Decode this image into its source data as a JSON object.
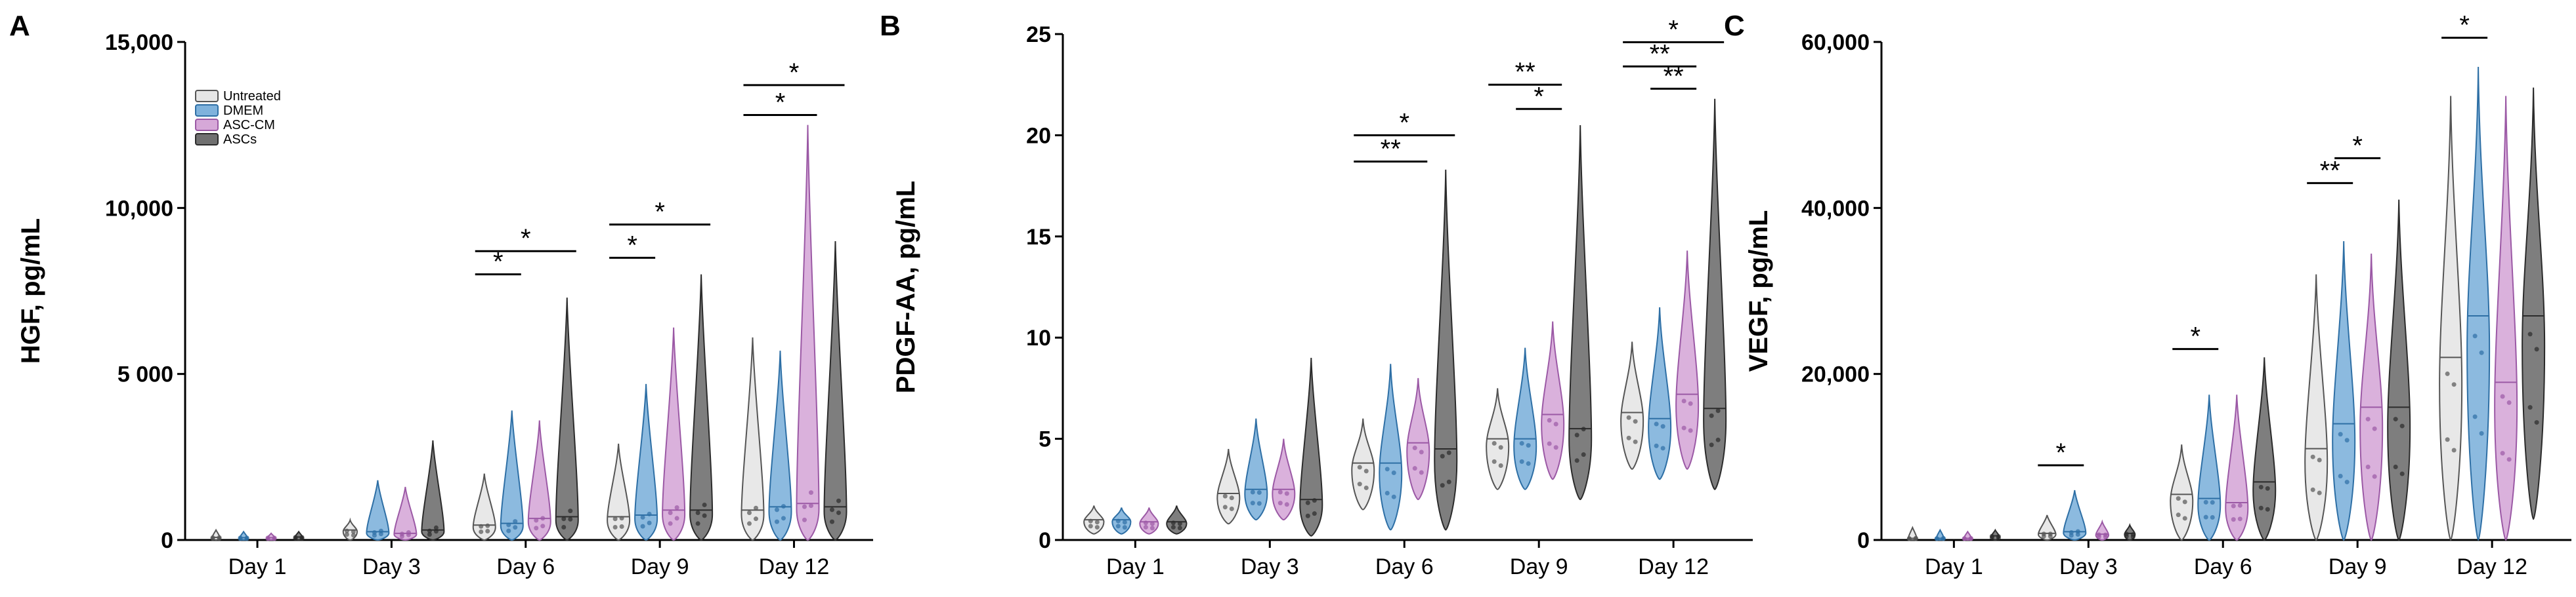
{
  "chart_data": [
    {
      "type": "violin",
      "panel_label": "A",
      "ylabel": "HGF, pg/mL",
      "ylim": [
        0,
        15000
      ],
      "yticks": [
        0,
        5000,
        10000,
        15000
      ],
      "ytick_labels": [
        "0",
        "5 000",
        "10,000",
        "15,000"
      ],
      "categories": [
        "Day 1",
        "Day 3",
        "Day 6",
        "Day 9",
        "Day 12"
      ],
      "legend": {
        "placement": "top-left",
        "entries": [
          "Untreated",
          "DMEM",
          "ASC-CM",
          "ASCs"
        ]
      },
      "series": [
        {
          "name": "Untreated",
          "color": "#e6e6e6",
          "edge": "#555555",
          "min": [
            0,
            0,
            0,
            0,
            0
          ],
          "median": [
            80,
            300,
            450,
            700,
            900
          ],
          "max": [
            300,
            600,
            2000,
            2900,
            6100
          ]
        },
        {
          "name": "DMEM",
          "color": "#7fb2dc",
          "edge": "#2e6fa5",
          "min": [
            0,
            0,
            0,
            0,
            0
          ],
          "median": [
            70,
            250,
            500,
            750,
            1000
          ],
          "max": [
            250,
            1800,
            3900,
            4700,
            5700
          ]
        },
        {
          "name": "ASC-CM",
          "color": "#d6a8d8",
          "edge": "#9b59a5",
          "min": [
            0,
            0,
            0,
            0,
            0
          ],
          "median": [
            70,
            200,
            650,
            900,
            1100
          ],
          "max": [
            200,
            1600,
            3600,
            6400,
            12500
          ]
        },
        {
          "name": "ASCs",
          "color": "#707070",
          "edge": "#2b2b2b",
          "min": [
            0,
            0,
            0,
            0,
            0
          ],
          "median": [
            90,
            300,
            700,
            900,
            1000
          ],
          "max": [
            250,
            3000,
            7300,
            8000,
            9000
          ]
        }
      ],
      "significance": [
        {
          "category": "Day 6",
          "from": "Untreated",
          "to": "DMEM",
          "label": "*",
          "y": 8000
        },
        {
          "category": "Day 6",
          "from": "Untreated",
          "to": "ASCs",
          "label": "*",
          "y": 8700
        },
        {
          "category": "Day 9",
          "from": "Untreated",
          "to": "DMEM",
          "label": "*",
          "y": 8500
        },
        {
          "category": "Day 9",
          "from": "Untreated",
          "to": "ASCs",
          "label": "*",
          "y": 9500
        },
        {
          "category": "Day 12",
          "from": "Untreated",
          "to": "ASC-CM",
          "label": "*",
          "y": 12800
        },
        {
          "category": "Day 12",
          "from": "Untreated",
          "to": "ASCs",
          "label": "*",
          "y": 13700
        }
      ]
    },
    {
      "type": "violin",
      "panel_label": "B",
      "ylabel": "PDGF-AA, pg/mL",
      "ylim": [
        0,
        25
      ],
      "yticks": [
        0,
        5,
        10,
        15,
        20,
        25
      ],
      "ytick_labels": [
        "0",
        "5",
        "10",
        "15",
        "20",
        "25"
      ],
      "categories": [
        "Day 1",
        "Day 3",
        "Day 6",
        "Day 9",
        "Day 12"
      ],
      "series": [
        {
          "name": "Untreated",
          "color": "#e6e6e6",
          "edge": "#555555",
          "min": [
            0.3,
            0.8,
            1.5,
            2.5,
            3.5
          ],
          "median": [
            1.0,
            2.3,
            3.8,
            5.0,
            6.3
          ],
          "max": [
            1.7,
            4.5,
            6.0,
            7.5,
            9.8
          ]
        },
        {
          "name": "DMEM",
          "color": "#7fb2dc",
          "edge": "#2e6fa5",
          "min": [
            0.3,
            1.0,
            0.5,
            2.5,
            3.0
          ],
          "median": [
            1.0,
            2.5,
            3.8,
            5.0,
            6.0
          ],
          "max": [
            1.6,
            6.0,
            8.7,
            9.5,
            11.5
          ]
        },
        {
          "name": "ASC-CM",
          "color": "#d6a8d8",
          "edge": "#9b59a5",
          "min": [
            0.3,
            1.0,
            2.0,
            3.0,
            3.5
          ],
          "median": [
            0.9,
            2.5,
            4.8,
            6.2,
            7.2
          ],
          "max": [
            1.6,
            5.0,
            8.0,
            10.8,
            14.3
          ]
        },
        {
          "name": "ASCs",
          "color": "#707070",
          "edge": "#2b2b2b",
          "min": [
            0.3,
            0.2,
            0.5,
            2.0,
            2.5
          ],
          "median": [
            0.9,
            2.0,
            4.5,
            5.5,
            6.5
          ],
          "max": [
            1.7,
            9.0,
            18.3,
            20.5,
            21.8
          ]
        }
      ],
      "significance": [
        {
          "category": "Day 6",
          "from": "Untreated",
          "to": "ASC-CM",
          "label": "**",
          "y": 18.7
        },
        {
          "category": "Day 6",
          "from": "Untreated",
          "to": "ASCs",
          "label": "*",
          "y": 20.0
        },
        {
          "category": "Day 9",
          "from": "DMEM",
          "to": "ASC-CM",
          "label": "*",
          "y": 21.3
        },
        {
          "category": "Day 9",
          "from": "Untreated",
          "to": "ASC-CM",
          "label": "**",
          "y": 22.5
        },
        {
          "category": "Day 12",
          "from": "DMEM",
          "to": "ASC-CM",
          "label": "**",
          "y": 22.3
        },
        {
          "category": "Day 12",
          "from": "Untreated",
          "to": "ASC-CM",
          "label": "**",
          "y": 23.4
        },
        {
          "category": "Day 12",
          "from": "Untreated",
          "to": "ASCs",
          "label": "*",
          "y": 24.6
        }
      ]
    },
    {
      "type": "violin",
      "panel_label": "C",
      "ylabel": "VEGF, pg/mL",
      "ylim": [
        0,
        60000
      ],
      "yticks": [
        0,
        20000,
        40000,
        60000
      ],
      "ytick_labels": [
        "0",
        "20,000",
        "40,000",
        "60,000"
      ],
      "categories": [
        "Day 1",
        "Day 3",
        "Day 6",
        "Day 9",
        "Day 12"
      ],
      "series": [
        {
          "name": "Untreated",
          "color": "#e6e6e6",
          "edge": "#555555",
          "min": [
            0,
            0,
            0,
            0,
            0
          ],
          "median": [
            200,
            800,
            5500,
            11000,
            22000
          ],
          "max": [
            1500,
            3000,
            11500,
            32000,
            53500
          ]
        },
        {
          "name": "DMEM",
          "color": "#7fb2dc",
          "edge": "#2e6fa5",
          "min": [
            0,
            0,
            0,
            0,
            0
          ],
          "median": [
            200,
            1000,
            5000,
            14000,
            27000
          ],
          "max": [
            1200,
            6000,
            17500,
            36000,
            57000
          ]
        },
        {
          "name": "ASC-CM",
          "color": "#d6a8d8",
          "edge": "#9b59a5",
          "min": [
            0,
            0,
            0,
            0,
            0
          ],
          "median": [
            200,
            700,
            4500,
            16000,
            19000
          ],
          "max": [
            1000,
            2200,
            17500,
            34500,
            53500
          ]
        },
        {
          "name": "ASCs",
          "color": "#707070",
          "edge": "#2b2b2b",
          "min": [
            0,
            0,
            0,
            0,
            2500
          ],
          "median": [
            500,
            800,
            7000,
            16000,
            27000
          ],
          "max": [
            1200,
            1800,
            22000,
            41000,
            54500
          ]
        }
      ],
      "significance": [
        {
          "category": "Day 3",
          "from": "Untreated",
          "to": "DMEM",
          "label": "*",
          "y": 9000
        },
        {
          "category": "Day 6",
          "from": "Untreated",
          "to": "DMEM",
          "label": "*",
          "y": 23000
        },
        {
          "category": "Day 9",
          "from": "Untreated",
          "to": "DMEM",
          "label": "**",
          "y": 43000
        },
        {
          "category": "Day 9",
          "from": "DMEM",
          "to": "ASC-CM",
          "label": "*",
          "y": 46000
        },
        {
          "category": "Day 12",
          "from": "Untreated",
          "to": "DMEM",
          "label": "*",
          "y": 60500
        }
      ]
    }
  ]
}
